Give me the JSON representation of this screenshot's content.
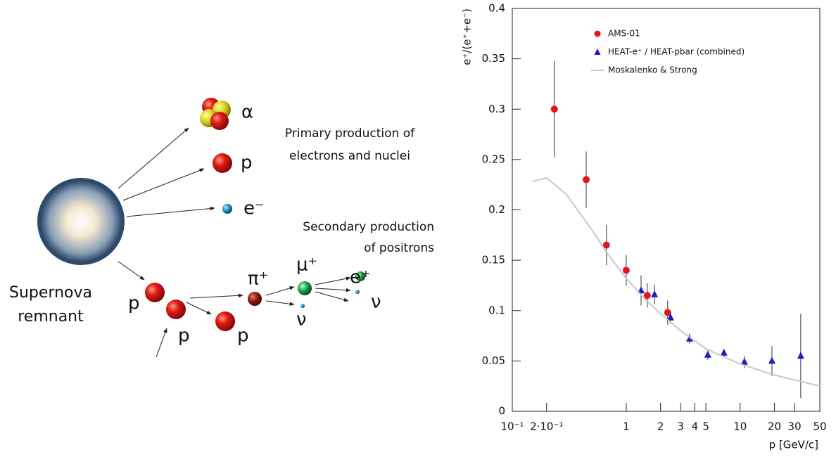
{
  "diagram": {
    "supernova": [
      "Supernova",
      "remnant"
    ],
    "primary_caption": [
      "Primary production of",
      "electrons and nuclei"
    ],
    "secondary_caption": [
      "Secondary production",
      "of positrons"
    ],
    "particles": [
      "α",
      "p",
      "e⁻",
      "p",
      "p",
      "p",
      "π⁺",
      "μ⁺",
      "ν",
      "e⁺",
      "ν"
    ]
  },
  "chart_data": {
    "type": "scatter",
    "xlabel": "p [GeV/c]",
    "ylabel": "e⁺/(e⁺+e⁻)",
    "xscale": "log",
    "xlim": [
      0.1,
      50
    ],
    "ylim": [
      0,
      0.4
    ],
    "xticks": [
      {
        "value": 0.1,
        "label": "10⁻¹"
      },
      {
        "value": 0.2,
        "label": "2·10⁻¹"
      },
      1,
      2,
      3,
      4,
      5,
      10,
      20,
      30,
      50
    ],
    "yticks": [
      0,
      0.05,
      0.1,
      0.15,
      0.2,
      0.25,
      0.3,
      0.35,
      0.4
    ],
    "series": [
      {
        "name": "AMS-01",
        "color": "#e8141b",
        "style": "circle",
        "x": [
          0.234,
          0.445,
          0.67,
          1.0,
          1.53,
          2.31
        ],
        "values": [
          0.3,
          0.23,
          0.165,
          0.14,
          0.115,
          0.098
        ],
        "errors": [
          0.048,
          0.028,
          0.02,
          0.015,
          0.012,
          0.012
        ]
      },
      {
        "name": "HEAT-e⁺ / HEAT-pbar (combined)",
        "color": "#1c1cc8",
        "style": "triangle",
        "x": [
          1.35,
          1.77,
          2.45,
          3.6,
          5.2,
          7.2,
          10.9,
          19,
          34
        ],
        "values": [
          0.12,
          0.116,
          0.093,
          0.072,
          0.056,
          0.058,
          0.049,
          0.05,
          0.055
        ],
        "errors": [
          0.015,
          0.01,
          0.006,
          0.005,
          0.005,
          0.004,
          0.006,
          0.015,
          0.042
        ]
      },
      {
        "name": "Moskalenko & Strong",
        "color": "#c8c8c8",
        "style": "line",
        "x": [
          0.15,
          0.2,
          0.3,
          0.5,
          0.7,
          1,
          1.5,
          2,
          3,
          5,
          10,
          20,
          50
        ],
        "values": [
          0.228,
          0.232,
          0.215,
          0.18,
          0.155,
          0.132,
          0.11,
          0.097,
          0.08,
          0.062,
          0.047,
          0.036,
          0.025
        ]
      }
    ]
  }
}
